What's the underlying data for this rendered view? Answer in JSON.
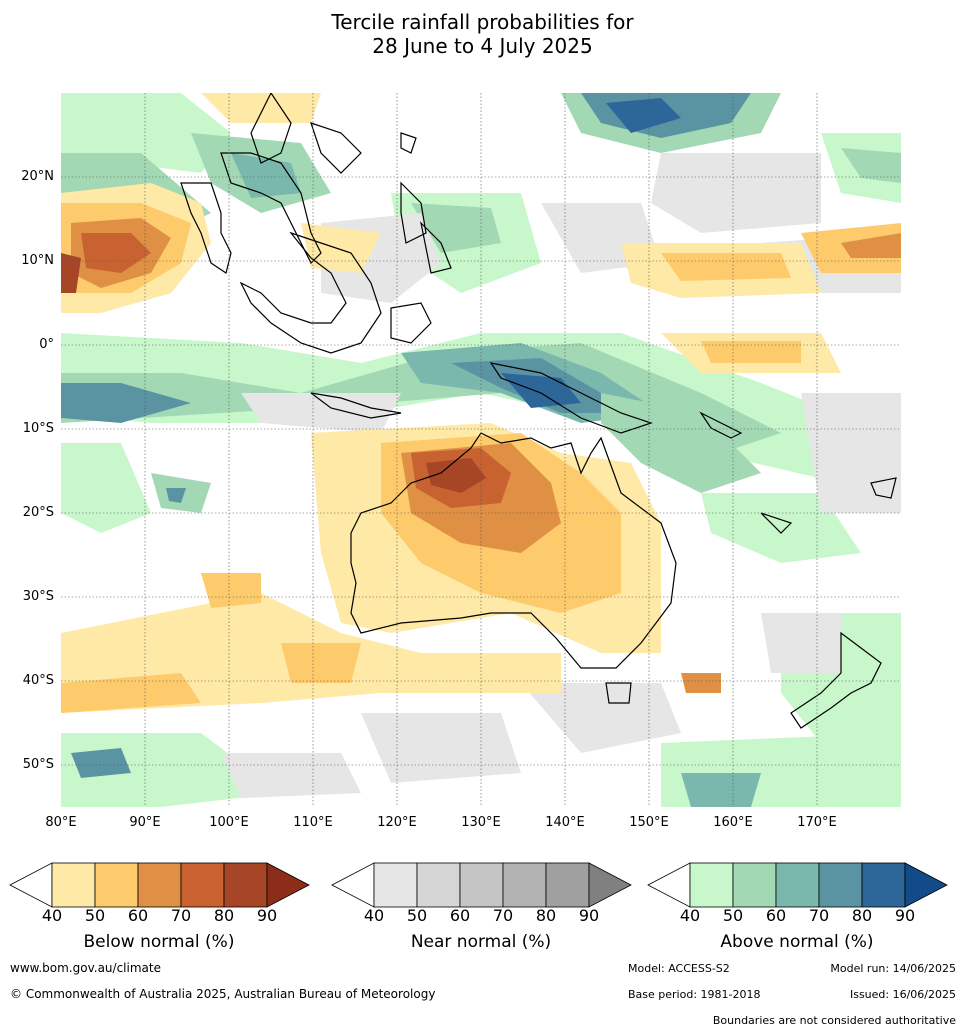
{
  "title": {
    "line1": "Tercile rainfall probabilities for",
    "line2": "28 June to 4 July 2025"
  },
  "map": {
    "lat_labels": [
      "20°N",
      "10°N",
      "0°",
      "10°S",
      "20°S",
      "30°S",
      "40°S",
      "50°S"
    ],
    "lon_labels": [
      "80°E",
      "90°E",
      "100°E",
      "110°E",
      "120°E",
      "130°E",
      "140°E",
      "150°E",
      "160°E",
      "170°E"
    ]
  },
  "colorbars": {
    "below": {
      "label": "Below normal (%)",
      "colors": [
        "#ffffff",
        "#fee9a6",
        "#fdcb6c",
        "#df9044",
        "#c86231",
        "#a64627",
        "#8c2d1a"
      ]
    },
    "near": {
      "label": "Near normal (%)",
      "colors": [
        "#ffffff",
        "#e6e6e6",
        "#d5d5d5",
        "#c5c5c5",
        "#b3b3b3",
        "#a0a0a0",
        "#808080"
      ]
    },
    "above": {
      "label": "Above normal (%)",
      "colors": [
        "#ffffff",
        "#c8f7cc",
        "#a3d8b5",
        "#7ab8ad",
        "#5a94a3",
        "#2d6698",
        "#134b89"
      ]
    },
    "ticks": [
      "40",
      "50",
      "60",
      "70",
      "80",
      "90"
    ]
  },
  "footer": {
    "url": "www.bom.gov.au/climate",
    "copyright": "© Commonwealth of Australia 2025, Australian Bureau of Meteorology",
    "model": "Model: ACCESS-S2",
    "model_run": "Model run: 14/06/2025",
    "base_period": "Base period: 1981-2018",
    "issued": "Issued: 16/06/2025",
    "disclaimer": "Boundaries are not considered authoritative"
  }
}
